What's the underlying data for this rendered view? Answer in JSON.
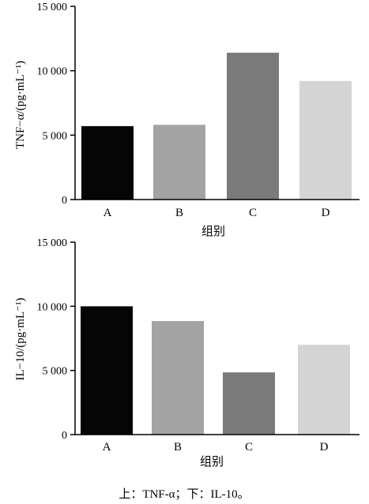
{
  "caption": "上：TNF-α；下：IL-10。",
  "chart_data": [
    {
      "type": "bar",
      "categories": [
        "A",
        "B",
        "C",
        "D"
      ],
      "values": [
        5700,
        5800,
        11400,
        9200
      ],
      "colors": [
        "#050505",
        "#a3a3a3",
        "#7a7a7a",
        "#d4d4d4"
      ],
      "ylabel": "TNF−α/(pg·mL⁻¹)",
      "xlabel": "组别",
      "yticks": [
        "0",
        "5 000",
        "10 000",
        "15 000"
      ],
      "ylim": [
        0,
        15000
      ]
    },
    {
      "type": "bar",
      "categories": [
        "A",
        "B",
        "C",
        "D"
      ],
      "values": [
        10000,
        8850,
        4850,
        7000
      ],
      "colors": [
        "#050505",
        "#a3a3a3",
        "#7a7a7a",
        "#d4d4d4"
      ],
      "ylabel": "IL−10/(pg·mL⁻¹)",
      "xlabel": "组别",
      "yticks": [
        "0",
        "5 000",
        "10 000",
        "15 000"
      ],
      "ylim": [
        0,
        15000
      ]
    }
  ]
}
